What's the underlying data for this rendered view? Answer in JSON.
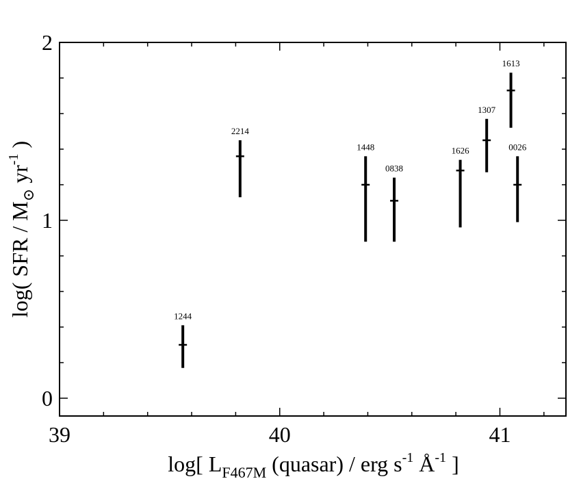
{
  "chart_data": {
    "type": "scatter",
    "xlabel": {
      "prefix": "log[ L",
      "subscript": "F467M",
      "middle": " (quasar) / erg s",
      "sup1": "-1",
      "unit2": " Å",
      "sup2": "-1",
      "suffix": " ]"
    },
    "ylabel": {
      "prefix": "log( SFR / M",
      "subscript": "⊙",
      "middle": " yr",
      "sup": "-1",
      "suffix": " )"
    },
    "xlim": [
      39,
      41.3
    ],
    "ylim": [
      -0.1,
      2
    ],
    "x_ticks_major": [
      39,
      40,
      41
    ],
    "x_tick_labels": [
      "39",
      "40",
      "41"
    ],
    "x_ticks_minor": [
      39.2,
      39.4,
      39.6,
      39.8,
      40.2,
      40.4,
      40.6,
      40.8,
      41.2
    ],
    "y_ticks_major": [
      0,
      1,
      2
    ],
    "y_tick_labels": [
      "0",
      "1",
      "2"
    ],
    "y_ticks_minor": [
      0.2,
      0.4,
      0.6,
      0.8,
      1.2,
      1.4,
      1.6,
      1.8
    ],
    "grid": false,
    "points": [
      {
        "label": "1244",
        "x": 39.56,
        "y": 0.3,
        "y_low": 0.17,
        "y_high": 0.41
      },
      {
        "label": "2214",
        "x": 39.82,
        "y": 1.36,
        "y_low": 1.13,
        "y_high": 1.45
      },
      {
        "label": "1448",
        "x": 40.39,
        "y": 1.2,
        "y_low": 0.88,
        "y_high": 1.36
      },
      {
        "label": "0838",
        "x": 40.52,
        "y": 1.11,
        "y_low": 0.88,
        "y_high": 1.24
      },
      {
        "label": "1626",
        "x": 40.82,
        "y": 1.28,
        "y_low": 0.96,
        "y_high": 1.34
      },
      {
        "label": "1307",
        "x": 40.94,
        "y": 1.45,
        "y_low": 1.27,
        "y_high": 1.57
      },
      {
        "label": "1613",
        "x": 41.05,
        "y": 1.73,
        "y_low": 1.52,
        "y_high": 1.83
      },
      {
        "label": "0026",
        "x": 41.08,
        "y": 1.2,
        "y_low": 0.99,
        "y_high": 1.36
      }
    ]
  }
}
